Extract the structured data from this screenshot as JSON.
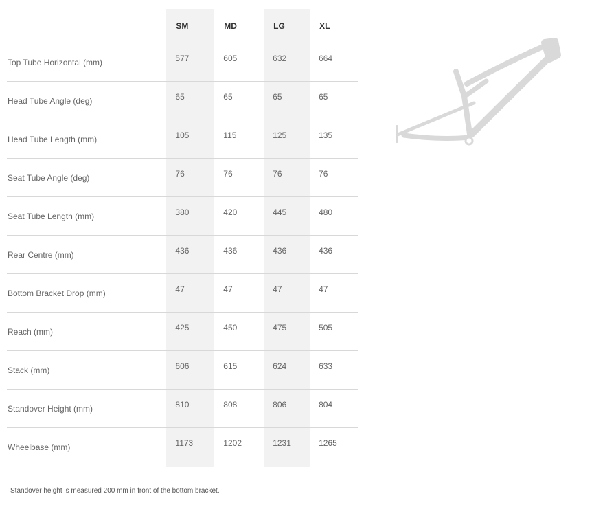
{
  "table": {
    "headers": [
      "SM",
      "MD",
      "LG",
      "XL"
    ],
    "rows": [
      {
        "label": "Top Tube Horizontal (mm)",
        "values": [
          "577",
          "605",
          "632",
          "664"
        ]
      },
      {
        "label": "Head Tube Angle (deg)",
        "values": [
          "65",
          "65",
          "65",
          "65"
        ]
      },
      {
        "label": "Head Tube Length (mm)",
        "values": [
          "105",
          "115",
          "125",
          "135"
        ]
      },
      {
        "label": "Seat Tube Angle (deg)",
        "values": [
          "76",
          "76",
          "76",
          "76"
        ]
      },
      {
        "label": "Seat Tube Length (mm)",
        "values": [
          "380",
          "420",
          "445",
          "480"
        ]
      },
      {
        "label": "Rear Centre (mm)",
        "values": [
          "436",
          "436",
          "436",
          "436"
        ]
      },
      {
        "label": "Bottom Bracket Drop (mm)",
        "values": [
          "47",
          "47",
          "47",
          "47"
        ]
      },
      {
        "label": "Reach (mm)",
        "values": [
          "425",
          "450",
          "475",
          "505"
        ]
      },
      {
        "label": "Stack (mm)",
        "values": [
          "606",
          "615",
          "624",
          "633"
        ]
      },
      {
        "label": "Standover Height (mm)",
        "values": [
          "810",
          "808",
          "806",
          "804"
        ]
      },
      {
        "label": "Wheelbase (mm)",
        "values": [
          "1173",
          "1202",
          "1231",
          "1265"
        ]
      }
    ]
  },
  "footnote": "Standover height is measured 200 mm in front of the bottom bracket.",
  "frame_color": "#d9d9d9"
}
